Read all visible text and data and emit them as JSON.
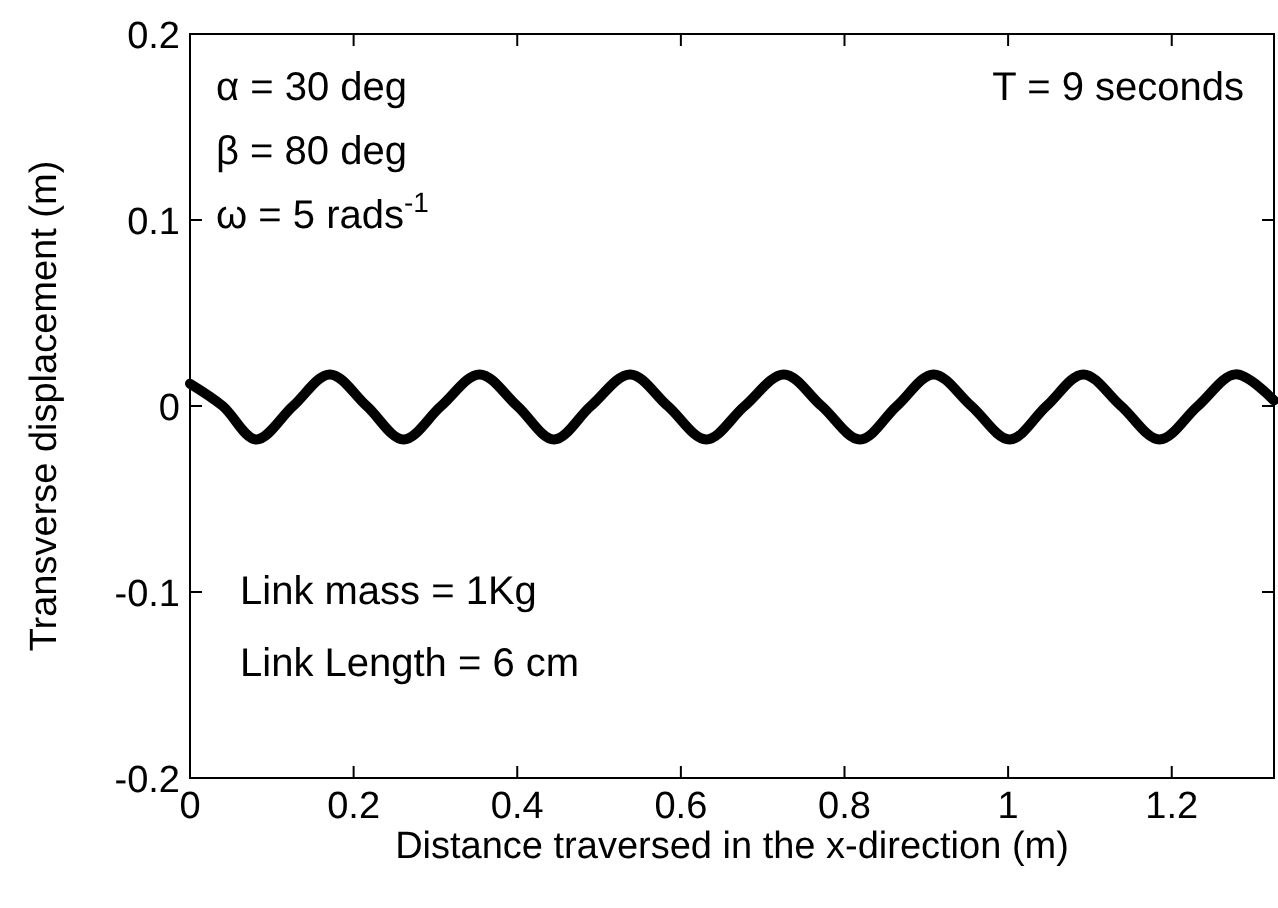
{
  "chart_data": {
    "type": "line",
    "xlabel": "Distance traversed in the x-direction (m)",
    "ylabel": "Transverse displacement (m)",
    "xlim": [
      0,
      1.325
    ],
    "ylim": [
      -0.2,
      0.2
    ],
    "xticks": [
      0,
      0.2,
      0.4,
      0.6,
      0.8,
      1,
      1.2
    ],
    "yticks": [
      -0.2,
      -0.1,
      0,
      0.1,
      0.2
    ],
    "grid": false,
    "marker": "none",
    "line_style": "solid",
    "series": [
      {
        "color": "#000000",
        "x": [
          0,
          0.04,
          0.081,
          0.126,
          0.171,
          0.216,
          0.261,
          0.307,
          0.354,
          0.4,
          0.445,
          0.49,
          0.538,
          0.584,
          0.631,
          0.678,
          0.726,
          0.772,
          0.819,
          0.864,
          0.909,
          0.955,
          1.002,
          1.047,
          1.092,
          1.138,
          1.185,
          1.232,
          1.278,
          1.325
        ],
        "values": [
          0.012,
          0,
          -0.018,
          0,
          0.017,
          0,
          -0.018,
          0,
          0.017,
          0,
          -0.018,
          0,
          0.017,
          0,
          -0.018,
          0,
          0.017,
          0,
          -0.018,
          0,
          0.017,
          0,
          -0.018,
          0,
          0.017,
          0,
          -0.018,
          0,
          0.017,
          0.003
        ]
      }
    ],
    "annotations": [
      "α = 30 deg",
      "β = 80 deg",
      "ω = 5  rads$^{-1}$",
      "T = 9 seconds",
      "Link mass = 1Kg",
      "Link Length = 6 cm"
    ]
  }
}
